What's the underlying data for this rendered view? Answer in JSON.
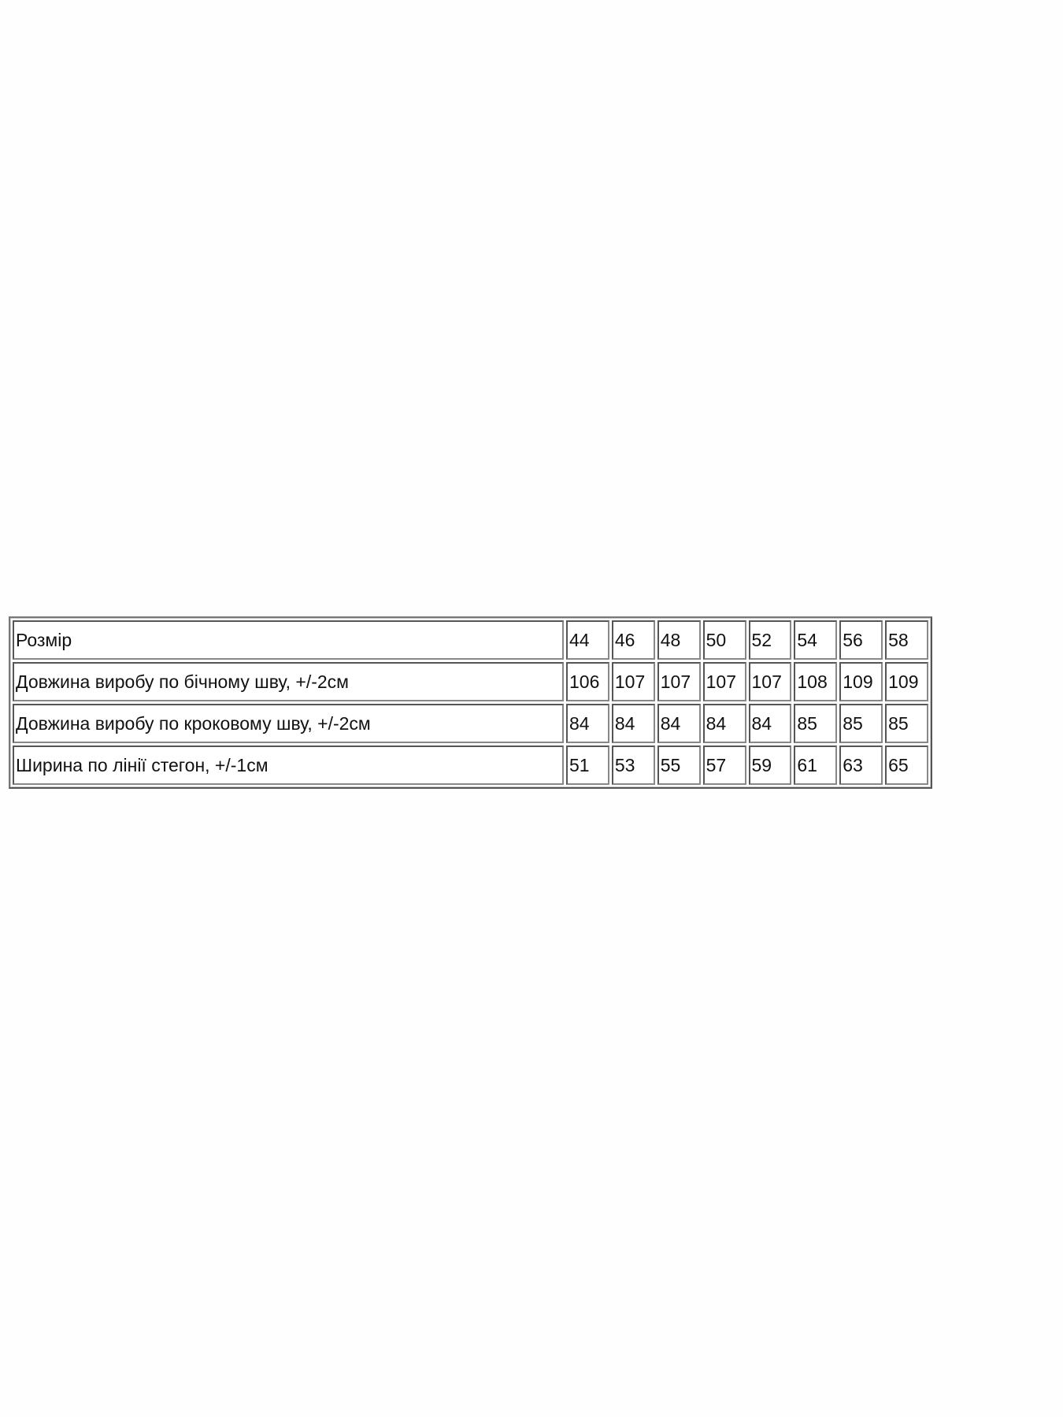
{
  "size_table": {
    "rows": [
      {
        "label": "Розмір",
        "values": [
          "44",
          "46",
          "48",
          "50",
          "52",
          "54",
          "56",
          "58"
        ]
      },
      {
        "label": "Довжина виробу по бічному шву, +/-2см",
        "values": [
          "106",
          "107",
          "107",
          "107",
          "107",
          "108",
          "109",
          "109"
        ]
      },
      {
        "label": "Довжина виробу по кроковому шву, +/-2см",
        "values": [
          "84",
          "84",
          "84",
          "84",
          "84",
          "85",
          "85",
          "85"
        ]
      },
      {
        "label": "Ширина по лінії стегон, +/-1см",
        "values": [
          "51",
          "53",
          "55",
          "57",
          "59",
          "61",
          "63",
          "65"
        ]
      }
    ]
  }
}
